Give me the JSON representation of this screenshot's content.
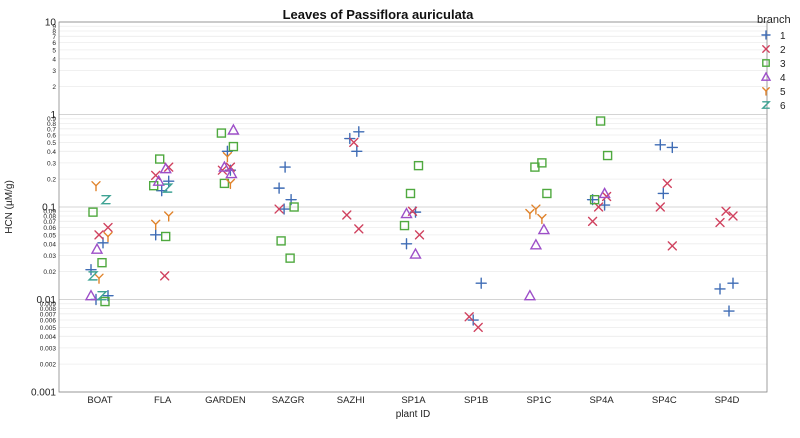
{
  "chart_data": {
    "type": "scatter",
    "title": "Leaves of Passiflora auriculata",
    "xlabel": "plant ID",
    "ylabel": "HCN (µM/g)",
    "y_scale": "log",
    "ylim": [
      0.001,
      10
    ],
    "grid": true,
    "legend_position": "right",
    "legend_title": "branch",
    "categories": [
      "BOAT",
      "FLA",
      "GARDEN",
      "SAZGR",
      "SAZHI",
      "SP1A",
      "SP1B",
      "SP1C",
      "SP4A",
      "SP4C",
      "SP4D"
    ],
    "y_ticks": [
      {
        "value": 10,
        "label": "10"
      },
      {
        "value": 9,
        "label": "9"
      },
      {
        "value": 8,
        "label": "8"
      },
      {
        "value": 7,
        "label": "7"
      },
      {
        "value": 6,
        "label": "6"
      },
      {
        "value": 5,
        "label": "5"
      },
      {
        "value": 4,
        "label": "4"
      },
      {
        "value": 3,
        "label": "3"
      },
      {
        "value": 2,
        "label": "2"
      },
      {
        "value": 1,
        "label": "1"
      },
      {
        "value": 0.9,
        "label": "0.9"
      },
      {
        "value": 0.8,
        "label": "0.8"
      },
      {
        "value": 0.7,
        "label": "0.7"
      },
      {
        "value": 0.6,
        "label": "0.6"
      },
      {
        "value": 0.5,
        "label": "0.5"
      },
      {
        "value": 0.4,
        "label": "0.4"
      },
      {
        "value": 0.3,
        "label": "0.3"
      },
      {
        "value": 0.2,
        "label": "0.2"
      },
      {
        "value": 0.1,
        "label": "0.1"
      },
      {
        "value": 0.09,
        "label": "0.09"
      },
      {
        "value": 0.08,
        "label": "0.08"
      },
      {
        "value": 0.07,
        "label": "0.07"
      },
      {
        "value": 0.06,
        "label": "0.06"
      },
      {
        "value": 0.05,
        "label": "0.05"
      },
      {
        "value": 0.04,
        "label": "0.04"
      },
      {
        "value": 0.03,
        "label": "0.03"
      },
      {
        "value": 0.02,
        "label": "0.02"
      },
      {
        "value": 0.01,
        "label": "0.01"
      },
      {
        "value": 0.009,
        "label": "0.009"
      },
      {
        "value": 0.008,
        "label": "0.008"
      },
      {
        "value": 0.007,
        "label": "0.007"
      },
      {
        "value": 0.006,
        "label": "0.006"
      },
      {
        "value": 0.005,
        "label": "0.005"
      },
      {
        "value": 0.004,
        "label": "0.004"
      },
      {
        "value": 0.003,
        "label": "0.003"
      },
      {
        "value": 0.002,
        "label": "0.002"
      },
      {
        "value": 0.001,
        "label": "0.001"
      }
    ],
    "series": [
      {
        "name": "1",
        "marker": "+",
        "color": "#3f6cb5",
        "points": [
          {
            "x": "BOAT",
            "y": 0.021
          },
          {
            "x": "BOAT",
            "y": 0.041
          },
          {
            "x": "BOAT",
            "y": 0.01
          },
          {
            "x": "BOAT",
            "y": 0.011
          },
          {
            "x": "FLA",
            "y": 0.15
          },
          {
            "x": "FLA",
            "y": 0.19
          },
          {
            "x": "FLA",
            "y": 0.05
          },
          {
            "x": "GARDEN",
            "y": 0.4
          },
          {
            "x": "GARDEN",
            "y": 0.25
          },
          {
            "x": "SAZGR",
            "y": 0.27
          },
          {
            "x": "SAZGR",
            "y": 0.16
          },
          {
            "x": "SAZGR",
            "y": 0.12
          },
          {
            "x": "SAZGR",
            "y": 0.095
          },
          {
            "x": "SAZHI",
            "y": 0.65
          },
          {
            "x": "SAZHI",
            "y": 0.55
          },
          {
            "x": "SAZHI",
            "y": 0.4
          },
          {
            "x": "SP1A",
            "y": 0.04
          },
          {
            "x": "SP1A",
            "y": 0.088
          },
          {
            "x": "SP1B",
            "y": 0.015
          },
          {
            "x": "SP1B",
            "y": 0.006
          },
          {
            "x": "SP4A",
            "y": 0.12
          },
          {
            "x": "SP4A",
            "y": 0.105
          },
          {
            "x": "SP4C",
            "y": 0.47
          },
          {
            "x": "SP4C",
            "y": 0.44
          },
          {
            "x": "SP4C",
            "y": 0.14
          },
          {
            "x": "SP4D",
            "y": 0.015
          },
          {
            "x": "SP4D",
            "y": 0.013
          },
          {
            "x": "SP4D",
            "y": 0.0075
          }
        ]
      },
      {
        "name": "2",
        "marker": "x",
        "color": "#d0425f",
        "points": [
          {
            "x": "BOAT",
            "y": 0.06
          },
          {
            "x": "BOAT",
            "y": 0.05
          },
          {
            "x": "FLA",
            "y": 0.27
          },
          {
            "x": "FLA",
            "y": 0.22
          },
          {
            "x": "FLA",
            "y": 0.018
          },
          {
            "x": "GARDEN",
            "y": 0.27
          },
          {
            "x": "GARDEN",
            "y": 0.25
          },
          {
            "x": "SAZGR",
            "y": 0.095
          },
          {
            "x": "SAZHI",
            "y": 0.5
          },
          {
            "x": "SAZHI",
            "y": 0.082
          },
          {
            "x": "SAZHI",
            "y": 0.058
          },
          {
            "x": "SP1A",
            "y": 0.09
          },
          {
            "x": "SP1A",
            "y": 0.05
          },
          {
            "x": "SP1B",
            "y": 0.0065
          },
          {
            "x": "SP1B",
            "y": 0.005
          },
          {
            "x": "SP4A",
            "y": 0.13
          },
          {
            "x": "SP4A",
            "y": 0.1
          },
          {
            "x": "SP4A",
            "y": 0.07
          },
          {
            "x": "SP4C",
            "y": 0.18
          },
          {
            "x": "SP4C",
            "y": 0.1
          },
          {
            "x": "SP4C",
            "y": 0.038
          },
          {
            "x": "SP4D",
            "y": 0.09
          },
          {
            "x": "SP4D",
            "y": 0.08
          },
          {
            "x": "SP4D",
            "y": 0.068
          }
        ]
      },
      {
        "name": "3",
        "marker": "square",
        "color": "#4fa93f",
        "points": [
          {
            "x": "BOAT",
            "y": 0.088
          },
          {
            "x": "BOAT",
            "y": 0.025
          },
          {
            "x": "BOAT",
            "y": 0.0095
          },
          {
            "x": "FLA",
            "y": 0.33
          },
          {
            "x": "FLA",
            "y": 0.17
          },
          {
            "x": "FLA",
            "y": 0.048
          },
          {
            "x": "GARDEN",
            "y": 0.63
          },
          {
            "x": "GARDEN",
            "y": 0.45
          },
          {
            "x": "GARDEN",
            "y": 0.18
          },
          {
            "x": "SAZGR",
            "y": 0.1
          },
          {
            "x": "SAZGR",
            "y": 0.043
          },
          {
            "x": "SAZGR",
            "y": 0.028
          },
          {
            "x": "SP1A",
            "y": 0.28
          },
          {
            "x": "SP1A",
            "y": 0.14
          },
          {
            "x": "SP1A",
            "y": 0.063
          },
          {
            "x": "SP1C",
            "y": 0.3
          },
          {
            "x": "SP1C",
            "y": 0.27
          },
          {
            "x": "SP1C",
            "y": 0.14
          },
          {
            "x": "SP4A",
            "y": 0.85
          },
          {
            "x": "SP4A",
            "y": 0.36
          },
          {
            "x": "SP4A",
            "y": 0.12
          }
        ]
      },
      {
        "name": "4",
        "marker": "triangle",
        "color": "#9d4fc8",
        "points": [
          {
            "x": "BOAT",
            "y": 0.035
          },
          {
            "x": "BOAT",
            "y": 0.011
          },
          {
            "x": "FLA",
            "y": 0.26
          },
          {
            "x": "FLA",
            "y": 0.19
          },
          {
            "x": "GARDEN",
            "y": 0.68
          },
          {
            "x": "GARDEN",
            "y": 0.27
          },
          {
            "x": "GARDEN",
            "y": 0.23
          },
          {
            "x": "SP1A",
            "y": 0.085
          },
          {
            "x": "SP1A",
            "y": 0.031
          },
          {
            "x": "SP1C",
            "y": 0.057
          },
          {
            "x": "SP1C",
            "y": 0.039
          },
          {
            "x": "SP1C",
            "y": 0.011
          },
          {
            "x": "SP4A",
            "y": 0.14
          }
        ]
      },
      {
        "name": "5",
        "marker": "Y",
        "color": "#e0832b",
        "points": [
          {
            "x": "BOAT",
            "y": 0.17
          },
          {
            "x": "BOAT",
            "y": 0.048
          },
          {
            "x": "BOAT",
            "y": 0.017
          },
          {
            "x": "FLA",
            "y": 0.08
          },
          {
            "x": "FLA",
            "y": 0.065
          },
          {
            "x": "GARDEN",
            "y": 0.35
          },
          {
            "x": "GARDEN",
            "y": 0.18
          },
          {
            "x": "SP1C",
            "y": 0.095
          },
          {
            "x": "SP1C",
            "y": 0.085
          },
          {
            "x": "SP1C",
            "y": 0.075
          }
        ]
      },
      {
        "name": "6",
        "marker": "Z",
        "color": "#3fa394",
        "points": [
          {
            "x": "BOAT",
            "y": 0.12
          },
          {
            "x": "BOAT",
            "y": 0.018
          },
          {
            "x": "BOAT",
            "y": 0.011
          },
          {
            "x": "FLA",
            "y": 0.16
          }
        ]
      }
    ]
  }
}
